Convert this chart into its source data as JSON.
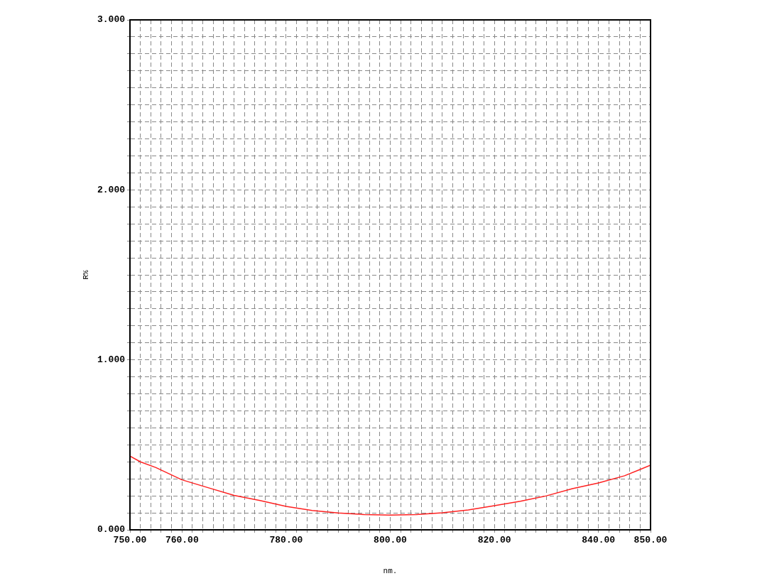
{
  "chart_data": {
    "type": "line",
    "xlabel": "nm.",
    "ylabel": "R%",
    "xlim": [
      750,
      850
    ],
    "ylim": [
      0,
      3
    ],
    "xticks": [
      {
        "value": 750,
        "label": "750.00"
      },
      {
        "value": 752,
        "label": null
      },
      {
        "value": 754,
        "label": null
      },
      {
        "value": 756,
        "label": null
      },
      {
        "value": 758,
        "label": null
      },
      {
        "value": 760,
        "label": "760.00"
      },
      {
        "value": 762,
        "label": null
      },
      {
        "value": 764,
        "label": null
      },
      {
        "value": 766,
        "label": null
      },
      {
        "value": 768,
        "label": null
      },
      {
        "value": 770,
        "label": null
      },
      {
        "value": 772,
        "label": null
      },
      {
        "value": 774,
        "label": null
      },
      {
        "value": 776,
        "label": null
      },
      {
        "value": 778,
        "label": null
      },
      {
        "value": 780,
        "label": "780.00"
      },
      {
        "value": 782,
        "label": null
      },
      {
        "value": 784,
        "label": null
      },
      {
        "value": 786,
        "label": null
      },
      {
        "value": 788,
        "label": null
      },
      {
        "value": 790,
        "label": null
      },
      {
        "value": 792,
        "label": null
      },
      {
        "value": 794,
        "label": null
      },
      {
        "value": 796,
        "label": null
      },
      {
        "value": 798,
        "label": null
      },
      {
        "value": 800,
        "label": "800.00"
      },
      {
        "value": 802,
        "label": null
      },
      {
        "value": 804,
        "label": null
      },
      {
        "value": 806,
        "label": null
      },
      {
        "value": 808,
        "label": null
      },
      {
        "value": 810,
        "label": null
      },
      {
        "value": 812,
        "label": null
      },
      {
        "value": 814,
        "label": null
      },
      {
        "value": 816,
        "label": null
      },
      {
        "value": 818,
        "label": null
      },
      {
        "value": 820,
        "label": "820.00"
      },
      {
        "value": 822,
        "label": null
      },
      {
        "value": 824,
        "label": null
      },
      {
        "value": 826,
        "label": null
      },
      {
        "value": 828,
        "label": null
      },
      {
        "value": 830,
        "label": null
      },
      {
        "value": 832,
        "label": null
      },
      {
        "value": 834,
        "label": null
      },
      {
        "value": 836,
        "label": null
      },
      {
        "value": 838,
        "label": null
      },
      {
        "value": 840,
        "label": "840.00"
      },
      {
        "value": 842,
        "label": null
      },
      {
        "value": 844,
        "label": null
      },
      {
        "value": 846,
        "label": null
      },
      {
        "value": 848,
        "label": null
      },
      {
        "value": 850,
        "label": "850.00"
      }
    ],
    "yticks": [
      {
        "value": 0,
        "label": "0.000"
      },
      {
        "value": 0.1,
        "label": null
      },
      {
        "value": 0.2,
        "label": null
      },
      {
        "value": 0.3,
        "label": null
      },
      {
        "value": 0.4,
        "label": null
      },
      {
        "value": 0.5,
        "label": null
      },
      {
        "value": 0.6,
        "label": null
      },
      {
        "value": 0.7,
        "label": null
      },
      {
        "value": 0.8,
        "label": null
      },
      {
        "value": 0.9,
        "label": null
      },
      {
        "value": 1,
        "label": "1.000"
      },
      {
        "value": 1.1,
        "label": null
      },
      {
        "value": 1.2,
        "label": null
      },
      {
        "value": 1.3,
        "label": null
      },
      {
        "value": 1.4,
        "label": null
      },
      {
        "value": 1.5,
        "label": null
      },
      {
        "value": 1.6,
        "label": null
      },
      {
        "value": 1.7,
        "label": null
      },
      {
        "value": 1.8,
        "label": null
      },
      {
        "value": 1.9,
        "label": null
      },
      {
        "value": 2,
        "label": "2.000"
      },
      {
        "value": 2.1,
        "label": null
      },
      {
        "value": 2.2,
        "label": null
      },
      {
        "value": 2.3,
        "label": null
      },
      {
        "value": 2.4,
        "label": null
      },
      {
        "value": 2.5,
        "label": null
      },
      {
        "value": 2.6,
        "label": null
      },
      {
        "value": 2.7,
        "label": null
      },
      {
        "value": 2.8,
        "label": null
      },
      {
        "value": 2.9,
        "label": null
      },
      {
        "value": 3,
        "label": "3.000"
      }
    ],
    "grid": true,
    "legend": false,
    "marker": "none",
    "line_style": "solid",
    "x": [
      750,
      752,
      755,
      760,
      765,
      770,
      775,
      780,
      785,
      790,
      795,
      800,
      805,
      810,
      815,
      820,
      825,
      830,
      835,
      840,
      845,
      848,
      850
    ],
    "series": [
      {
        "color": "#ff2020",
        "values": [
          0.434,
          0.4,
          0.366,
          0.294,
          0.248,
          0.203,
          0.172,
          0.138,
          0.114,
          0.099,
          0.09,
          0.087,
          0.09,
          0.1,
          0.117,
          0.142,
          0.168,
          0.2,
          0.242,
          0.276,
          0.318,
          0.355,
          0.38
        ]
      }
    ]
  }
}
